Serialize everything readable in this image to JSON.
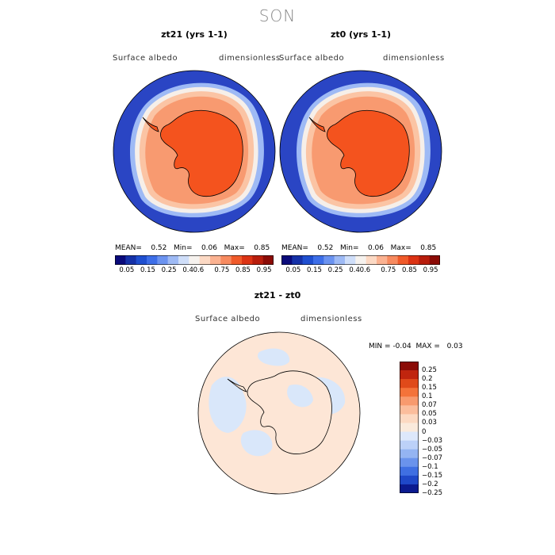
{
  "season": "SON",
  "panels": [
    {
      "title": "zt21 (yrs 1-1)",
      "variable": "Surface albedo",
      "units": "dimensionless",
      "mean_label": "MEAN=",
      "mean": "0.52",
      "min_label": "Min=",
      "min": "0.06",
      "max_label": "Max=",
      "max": "0.85"
    },
    {
      "title": "zt0 (yrs 1-1)",
      "variable": "Surface albedo",
      "units": "dimensionless",
      "mean_label": "MEAN=",
      "mean": "0.52",
      "min_label": "Min=",
      "min": "0.06",
      "max_label": "Max=",
      "max": "0.85"
    }
  ],
  "colorbar_top": {
    "labels": [
      "0.05",
      "0.15",
      "0.25",
      "0.4",
      "0.6",
      "0.75",
      "0.85",
      "0.95"
    ],
    "colors": [
      "#0a0a7a",
      "#1531a8",
      "#1f4fd0",
      "#3d6ee8",
      "#6b93f0",
      "#9ebaf5",
      "#cfdef9",
      "#f6f2ee",
      "#fcd9c4",
      "#fbb291",
      "#f78a5f",
      "#f05a2a",
      "#dc3314",
      "#b81d0c",
      "#8b0b06"
    ]
  },
  "difference": {
    "title": "zt21 - zt0",
    "variable": "Surface albedo",
    "units": "dimensionless",
    "min_label": "MIN =",
    "min": "-0.04",
    "max_label": "MAX =",
    "max": "0.03",
    "legend_labels": [
      "0.25",
      "0.2",
      "0.15",
      "0.1",
      "0.07",
      "0.05",
      "0.03",
      "0",
      "−0.03",
      "−0.05",
      "−0.07",
      "−0.1",
      "−0.15",
      "−0.2",
      "−0.25"
    ],
    "legend_colors": [
      "#8b0b06",
      "#c0250e",
      "#e04a1a",
      "#f4733a",
      "#f89a6e",
      "#fbbd9c",
      "#fcd9c2",
      "#faeadc",
      "#dde8fb",
      "#bcd1f8",
      "#94b4f2",
      "#6a93ec",
      "#3f6fe2",
      "#1f48c8",
      "#0b1a8f"
    ]
  },
  "colors": {
    "ocean_low": "#2946c8",
    "ice_mid": "#fbb291",
    "continent": "#f4531e",
    "diff_pos": "#fde6d6",
    "diff_neg": "#d9e7fa"
  }
}
